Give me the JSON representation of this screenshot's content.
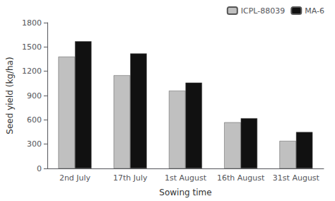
{
  "chart_data": {
    "type": "bar",
    "categories": [
      "2nd July",
      "17th July",
      "1st August",
      "16th August",
      "31st August"
    ],
    "series": [
      {
        "name": "ICPL-88039",
        "color": "#c0c0c0",
        "values": [
          1380,
          1150,
          960,
          570,
          340
        ]
      },
      {
        "name": "MA-6",
        "color": "#111111",
        "values": [
          1570,
          1420,
          1060,
          620,
          450
        ]
      }
    ],
    "xlabel": "Sowing time",
    "ylabel": "Seed yield (kg/ha)",
    "ylim": [
      0,
      1800
    ],
    "yticks": [
      0,
      300,
      600,
      900,
      1200,
      1500,
      1800
    ],
    "legend": "upper right",
    "grid": false
  }
}
